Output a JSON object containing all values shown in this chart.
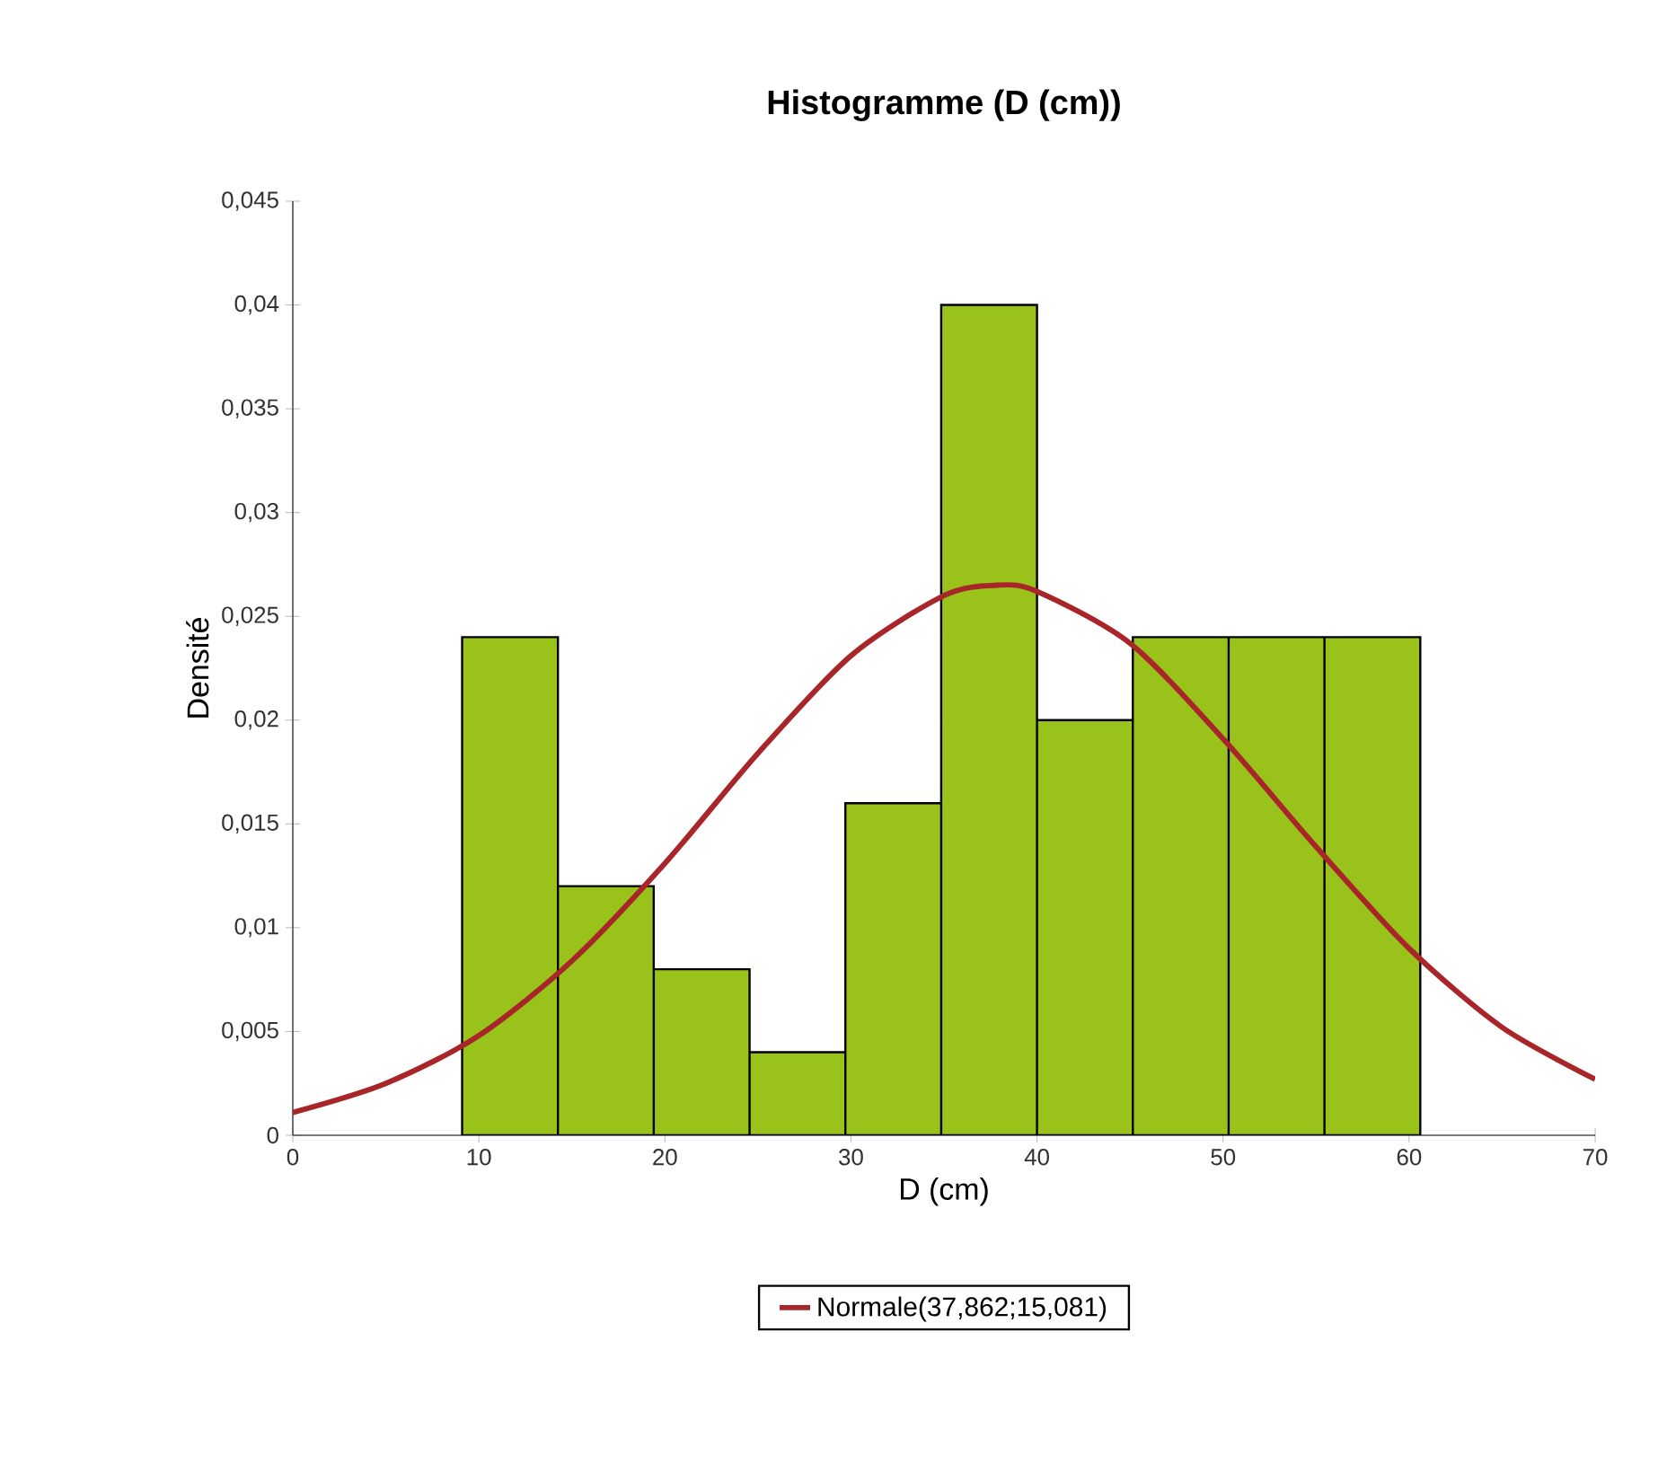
{
  "chart_data": {
    "type": "histogram",
    "title": "Histogramme  (D (cm))",
    "xlabel": "D (cm)",
    "ylabel": "Densité",
    "bins": [
      9.1,
      14.25,
      19.4,
      24.55,
      29.7,
      34.85,
      40,
      45.15,
      50.3,
      55.45,
      60.6
    ],
    "values": [
      0.024,
      0.012,
      0.008,
      0.004,
      0.016,
      0.04,
      0.02,
      0.024,
      0.024,
      0.024
    ],
    "color": "#99c31a",
    "series": [
      {
        "type": "line",
        "name": "Normale(37,862;15,081)",
        "color": "#a8262a",
        "x": [
          0,
          5,
          10,
          15,
          20,
          25,
          30,
          35,
          37.862,
          40,
          45,
          50,
          55,
          60,
          65,
          70
        ],
        "values": [
          0.0011,
          0.0025,
          0.0048,
          0.0084,
          0.0131,
          0.0184,
          0.0231,
          0.026,
          0.0265,
          0.0262,
          0.0237,
          0.0191,
          0.0139,
          0.009,
          0.0052,
          0.0027
        ]
      }
    ],
    "xlim": [
      0,
      70
    ],
    "xticks": [
      0,
      10,
      20,
      30,
      40,
      50,
      60,
      70
    ],
    "ylim": [
      0,
      0.045
    ],
    "yticks": [
      {
        "value": 0,
        "label": "0"
      },
      {
        "value": 0.005,
        "label": "0,005"
      },
      {
        "value": 0.01,
        "label": "0,01"
      },
      {
        "value": 0.015,
        "label": "0,015"
      },
      {
        "value": 0.02,
        "label": "0,02"
      },
      {
        "value": 0.025,
        "label": "0,025"
      },
      {
        "value": 0.03,
        "label": "0,03"
      },
      {
        "value": 0.035,
        "label": "0,035"
      },
      {
        "value": 0.04,
        "label": "0,04"
      },
      {
        "value": 0.045,
        "label": "0,045"
      }
    ],
    "grid": false,
    "legend": "bottom"
  }
}
